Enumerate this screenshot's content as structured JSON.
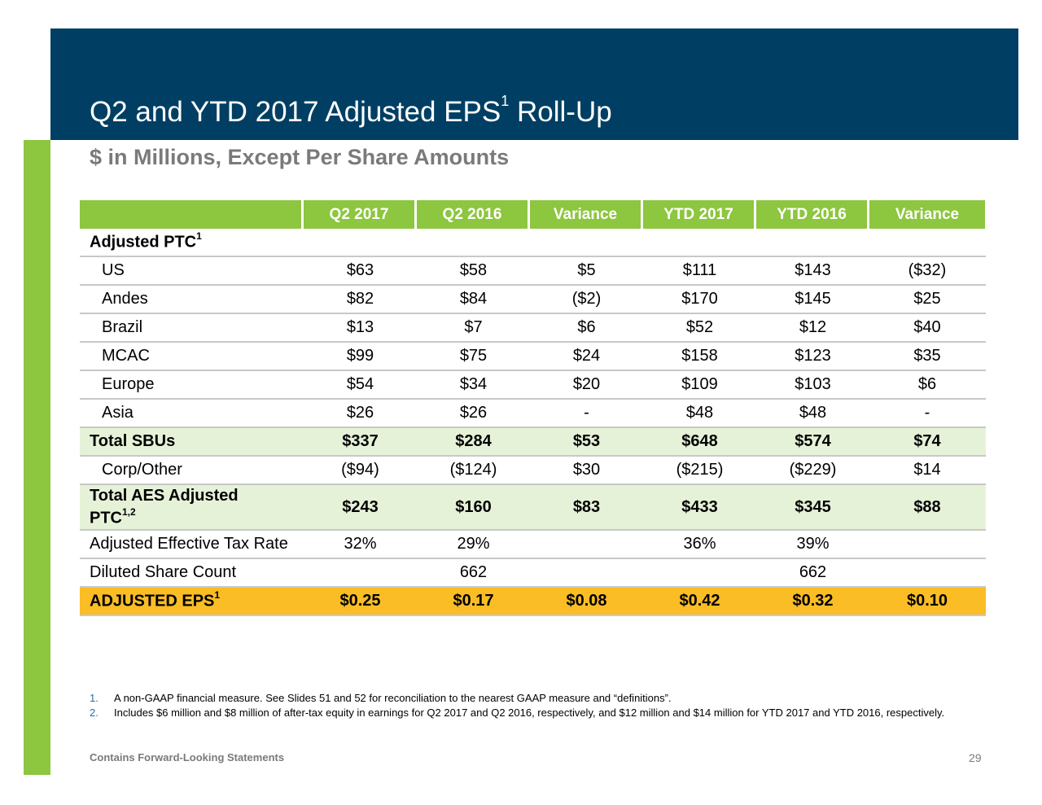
{
  "title": {
    "main": "Q2 and YTD 2017 Adjusted EPS",
    "sup": "1",
    "rest": " Roll-Up"
  },
  "subtitle": "$ in Millions, Except Per Share Amounts",
  "columns": [
    "Q2 2017",
    "Q2 2016",
    "Variance",
    "YTD 2017",
    "YTD 2016",
    "Variance"
  ],
  "section_label": {
    "text": "Adjusted PTC",
    "sup": "1"
  },
  "rows": {
    "us": {
      "label": "US",
      "values": [
        "$63",
        "$58",
        "$5",
        "$111",
        "$143",
        "($32)"
      ]
    },
    "andes": {
      "label": "Andes",
      "values": [
        "$82",
        "$84",
        "($2)",
        "$170",
        "$145",
        "$25"
      ]
    },
    "brazil": {
      "label": "Brazil",
      "values": [
        "$13",
        "$7",
        "$6",
        "$52",
        "$12",
        "$40"
      ]
    },
    "mcac": {
      "label": "MCAC",
      "values": [
        "$99",
        "$75",
        "$24",
        "$158",
        "$123",
        "$35"
      ]
    },
    "europe": {
      "label": "Europe",
      "values": [
        "$54",
        "$34",
        "$20",
        "$109",
        "$103",
        "$6"
      ]
    },
    "asia": {
      "label": "Asia",
      "values": [
        "$26",
        "$26",
        "-",
        "$48",
        "$48",
        "-"
      ]
    },
    "total_sbus": {
      "label": "Total SBUs",
      "values": [
        "$337",
        "$284",
        "$53",
        "$648",
        "$574",
        "$74"
      ]
    },
    "corp": {
      "label": "Corp/Other",
      "values": [
        "($94)",
        "($124)",
        "$30",
        "($215)",
        "($229)",
        "$14"
      ]
    },
    "total_aes": {
      "label_line1": "Total AES Adjusted",
      "label_line2": "PTC",
      "sup": "1,2",
      "values": [
        "$243",
        "$160",
        "$83",
        "$433",
        "$345",
        "$88"
      ]
    },
    "tax_rate": {
      "label": "Adjusted Effective Tax Rate",
      "values": [
        "32%",
        "29%",
        "",
        "36%",
        "39%",
        ""
      ]
    },
    "share_count": {
      "label": "Diluted Share Count",
      "values": [
        "",
        "662",
        "",
        "",
        "662",
        ""
      ]
    },
    "eps": {
      "label": "ADJUSTED EPS",
      "sup": "1",
      "values": [
        "$0.25",
        "$0.17",
        "$0.08",
        "$0.42",
        "$0.32",
        "$0.10"
      ]
    }
  },
  "footnotes": [
    {
      "num": "1.",
      "text": "A non-GAAP financial measure.  See Slides 51 and 52 for reconciliation to the nearest GAAP measure and “definitions”."
    },
    {
      "num": "2.",
      "text": "Includes $6 million and $8 million of after-tax equity in earnings for Q2 2017 and Q2 2016, respectively, and $12 million and $14 million for YTD 2017 and YTD 2016, respectively."
    }
  ],
  "footer": "Contains Forward-Looking Statements",
  "page_number": "29",
  "colors": {
    "header": "#003f63",
    "accent_green": "#8dc63f",
    "highlight_green": "#e6f2d8",
    "eps_gold": "#fbbd25"
  }
}
